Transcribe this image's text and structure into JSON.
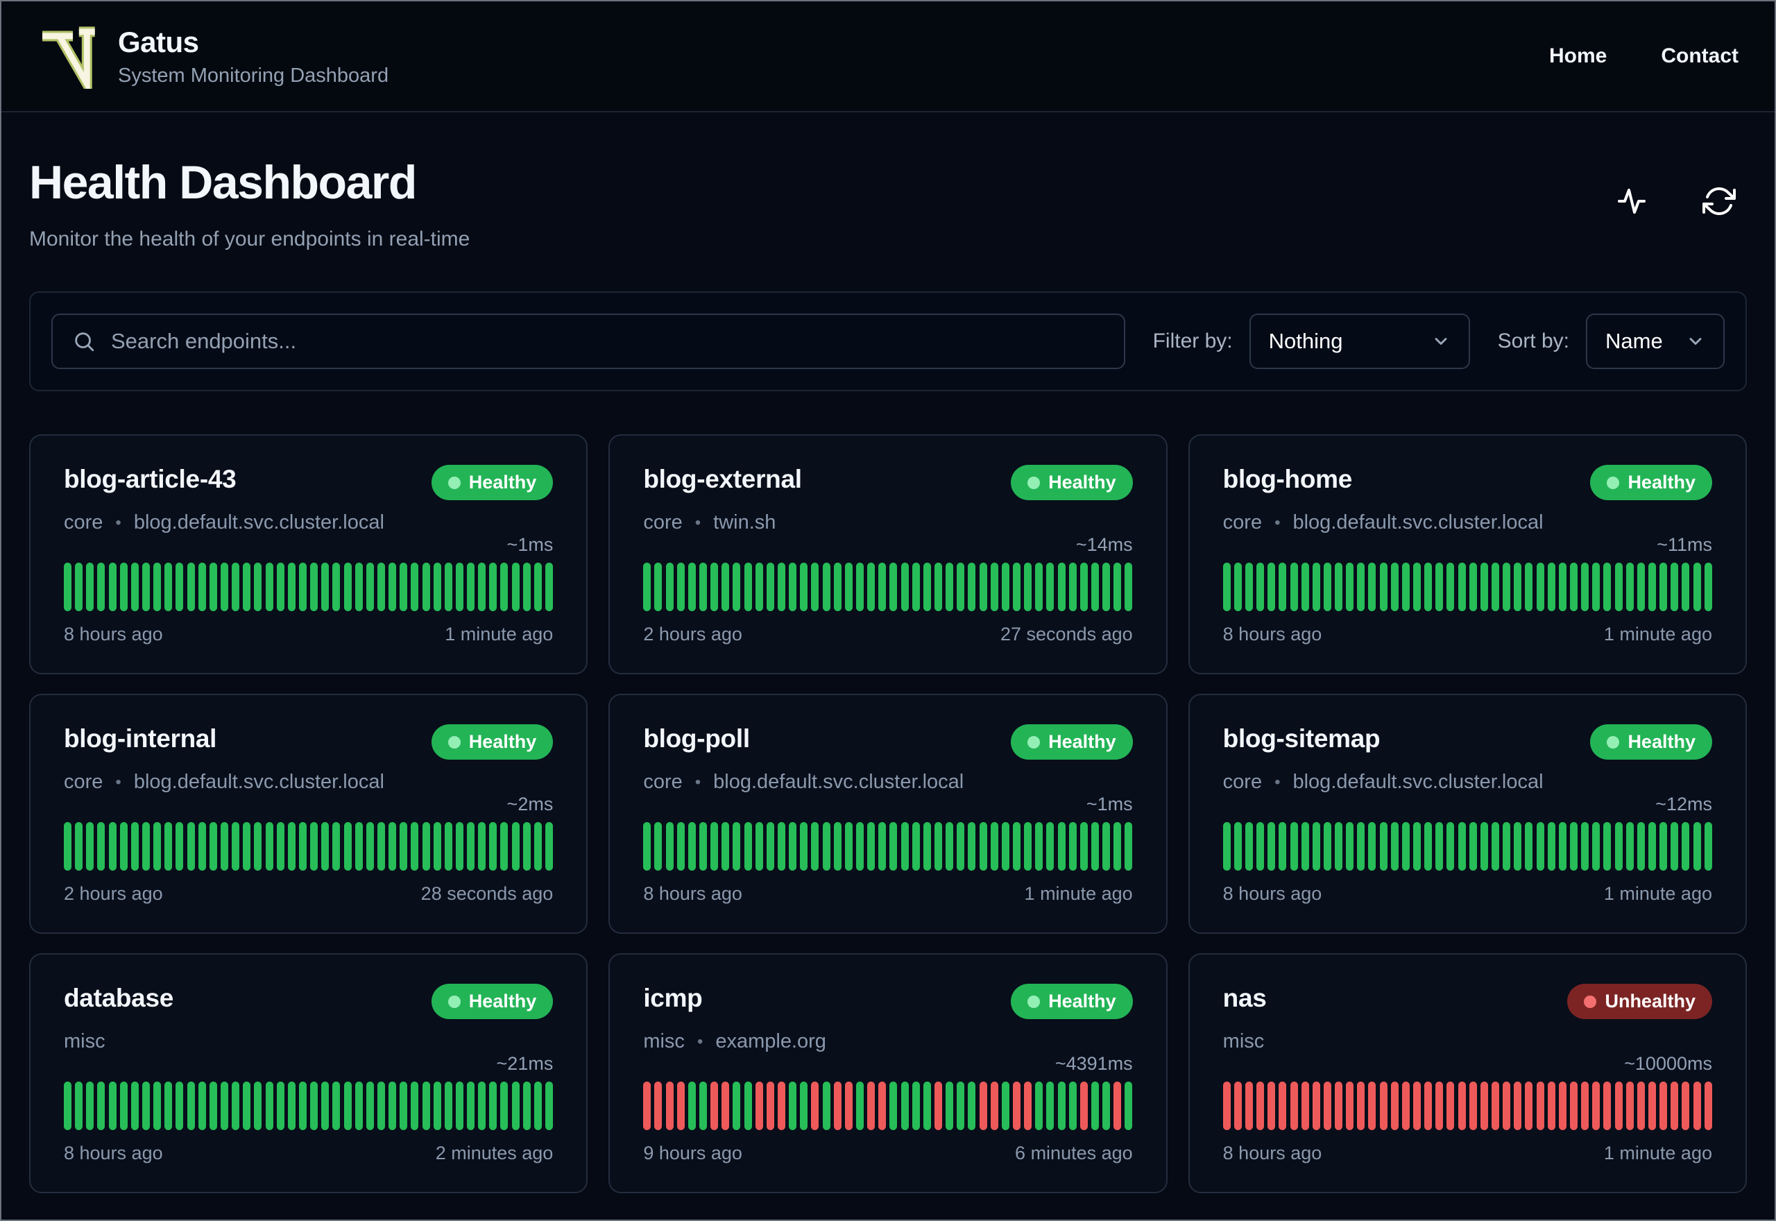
{
  "header": {
    "app_name": "Gatus",
    "app_subtitle": "System Monitoring Dashboard",
    "nav": [
      {
        "label": "Home"
      },
      {
        "label": "Contact"
      }
    ]
  },
  "page": {
    "title": "Health Dashboard",
    "subtitle": "Monitor the health of your endpoints in real-time",
    "actions": [
      "activity-icon",
      "refresh-icon"
    ]
  },
  "toolbar": {
    "search_placeholder": "Search endpoints...",
    "filter_label": "Filter by:",
    "filter_value": "Nothing",
    "sort_label": "Sort by:",
    "sort_value": "Name"
  },
  "colors": {
    "healthy_badge": "#23b456",
    "healthy_dot": "#94efb5",
    "unhealthy_badge": "#7c2424",
    "unhealthy_dot": "#f47070",
    "bar_up": "#27bd58",
    "bar_down": "#ee5a5a",
    "background": "#050a14",
    "card_border": "#242d3e"
  },
  "endpoints": [
    {
      "name": "blog-article-43",
      "group": "core",
      "host": "blog.default.svc.cluster.local",
      "status": "Healthy",
      "latency": "~1ms",
      "oldest": "8 hours ago",
      "newest": "1 minute ago",
      "bars": "GGGGGGGGGGGGGGGGGGGGGGGGGGGGGGGGGGGGGGGGGGGG"
    },
    {
      "name": "blog-external",
      "group": "core",
      "host": "twin.sh",
      "status": "Healthy",
      "latency": "~14ms",
      "oldest": "2 hours ago",
      "newest": "27 seconds ago",
      "bars": "GGGGGGGGGGGGGGGGGGGGGGGGGGGGGGGGGGGGGGGGGGGG"
    },
    {
      "name": "blog-home",
      "group": "core",
      "host": "blog.default.svc.cluster.local",
      "status": "Healthy",
      "latency": "~11ms",
      "oldest": "8 hours ago",
      "newest": "1 minute ago",
      "bars": "GGGGGGGGGGGGGGGGGGGGGGGGGGGGGGGGGGGGGGGGGGGG"
    },
    {
      "name": "blog-internal",
      "group": "core",
      "host": "blog.default.svc.cluster.local",
      "status": "Healthy",
      "latency": "~2ms",
      "oldest": "2 hours ago",
      "newest": "28 seconds ago",
      "bars": "GGGGGGGGGGGGGGGGGGGGGGGGGGGGGGGGGGGGGGGGGGGG"
    },
    {
      "name": "blog-poll",
      "group": "core",
      "host": "blog.default.svc.cluster.local",
      "status": "Healthy",
      "latency": "~1ms",
      "oldest": "8 hours ago",
      "newest": "1 minute ago",
      "bars": "GGGGGGGGGGGGGGGGGGGGGGGGGGGGGGGGGGGGGGGGGGGG"
    },
    {
      "name": "blog-sitemap",
      "group": "core",
      "host": "blog.default.svc.cluster.local",
      "status": "Healthy",
      "latency": "~12ms",
      "oldest": "8 hours ago",
      "newest": "1 minute ago",
      "bars": "GGGGGGGGGGGGGGGGGGGGGGGGGGGGGGGGGGGGGGGGGGGG"
    },
    {
      "name": "database",
      "group": "misc",
      "host": "",
      "status": "Healthy",
      "latency": "~21ms",
      "oldest": "8 hours ago",
      "newest": "2 minutes ago",
      "bars": "GGGGGGGGGGGGGGGGGGGGGGGGGGGGGGGGGGGGGGGGGGGG"
    },
    {
      "name": "icmp",
      "group": "misc",
      "host": "example.org",
      "status": "Healthy",
      "latency": "~4391ms",
      "oldest": "9 hours ago",
      "newest": "6 minutes ago",
      "bars": "RRRRGGRRGGRRRGGRGRRGRRGGGGRGGGRRGRRGGGGRGGRG"
    },
    {
      "name": "nas",
      "group": "misc",
      "host": "",
      "status": "Unhealthy",
      "latency": "~10000ms",
      "oldest": "8 hours ago",
      "newest": "1 minute ago",
      "bars": "RRRRRRRRRRRRRRRRRRRRRRRRRRRRRRRRRRRRRRRRRRRR"
    }
  ]
}
